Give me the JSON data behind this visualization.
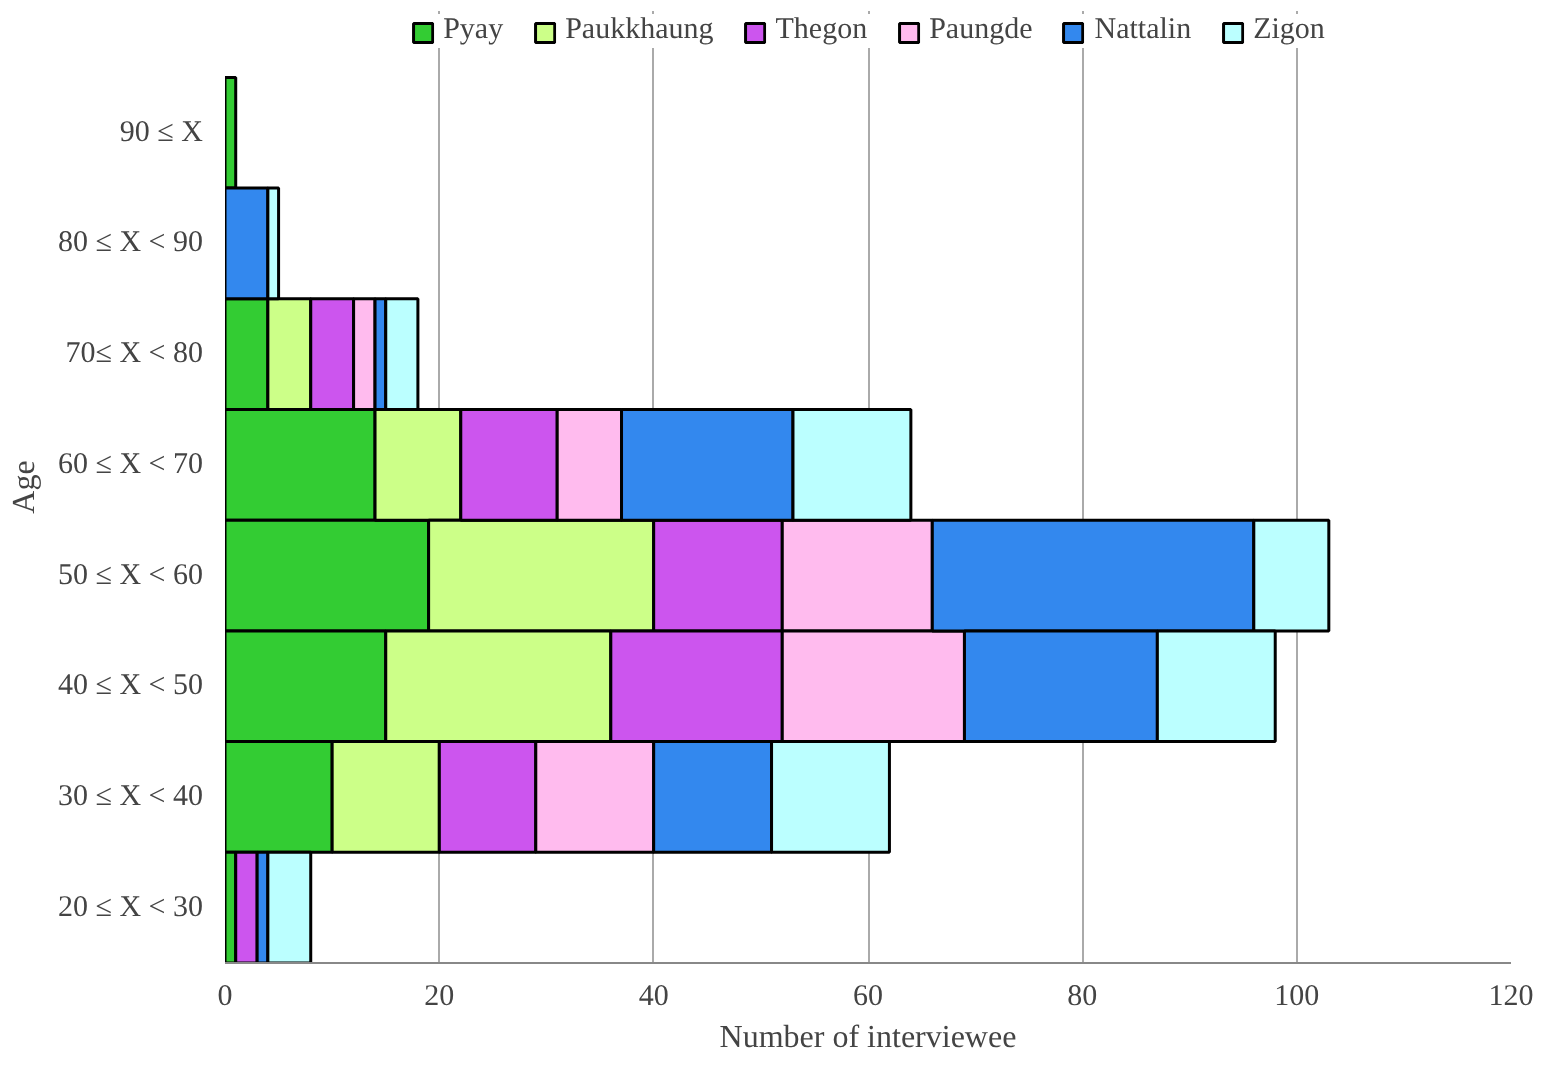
{
  "chart_data": {
    "type": "bar",
    "orientation": "horizontal",
    "stacked": true,
    "xlabel": "Number of interviewee",
    "ylabel": "Age",
    "categories": [
      "90 ≤ X",
      "80 ≤ X < 90",
      "70≤ X < 80",
      "60 ≤ X < 70",
      "50 ≤ X < 60",
      "40 ≤ X < 50",
      "30 ≤ X < 40",
      "20 ≤ X < 30"
    ],
    "series": [
      {
        "name": "Pyay",
        "color": "#33cc33",
        "values": [
          1,
          0,
          4,
          14,
          19,
          15,
          10,
          1
        ]
      },
      {
        "name": "Paukkhaung",
        "color": "#ccff88",
        "values": [
          0,
          0,
          4,
          8,
          21,
          21,
          10,
          0
        ]
      },
      {
        "name": "Thegon",
        "color": "#cc55ee",
        "values": [
          0,
          0,
          4,
          9,
          12,
          16,
          9,
          2
        ]
      },
      {
        "name": "Paungde",
        "color": "#ffbbee",
        "values": [
          0,
          0,
          2,
          6,
          14,
          17,
          11,
          0
        ]
      },
      {
        "name": "Nattalin",
        "color": "#3388ee",
        "values": [
          0,
          4,
          1,
          16,
          30,
          18,
          11,
          1
        ]
      },
      {
        "name": "Zigon",
        "color": "#bbffff",
        "values": [
          0,
          1,
          3,
          11,
          7,
          11,
          11,
          4
        ]
      }
    ],
    "xlim": [
      0,
      120
    ],
    "xticks": [
      0,
      20,
      40,
      60,
      80,
      100,
      120
    ],
    "grid": "x",
    "legend": "top"
  }
}
